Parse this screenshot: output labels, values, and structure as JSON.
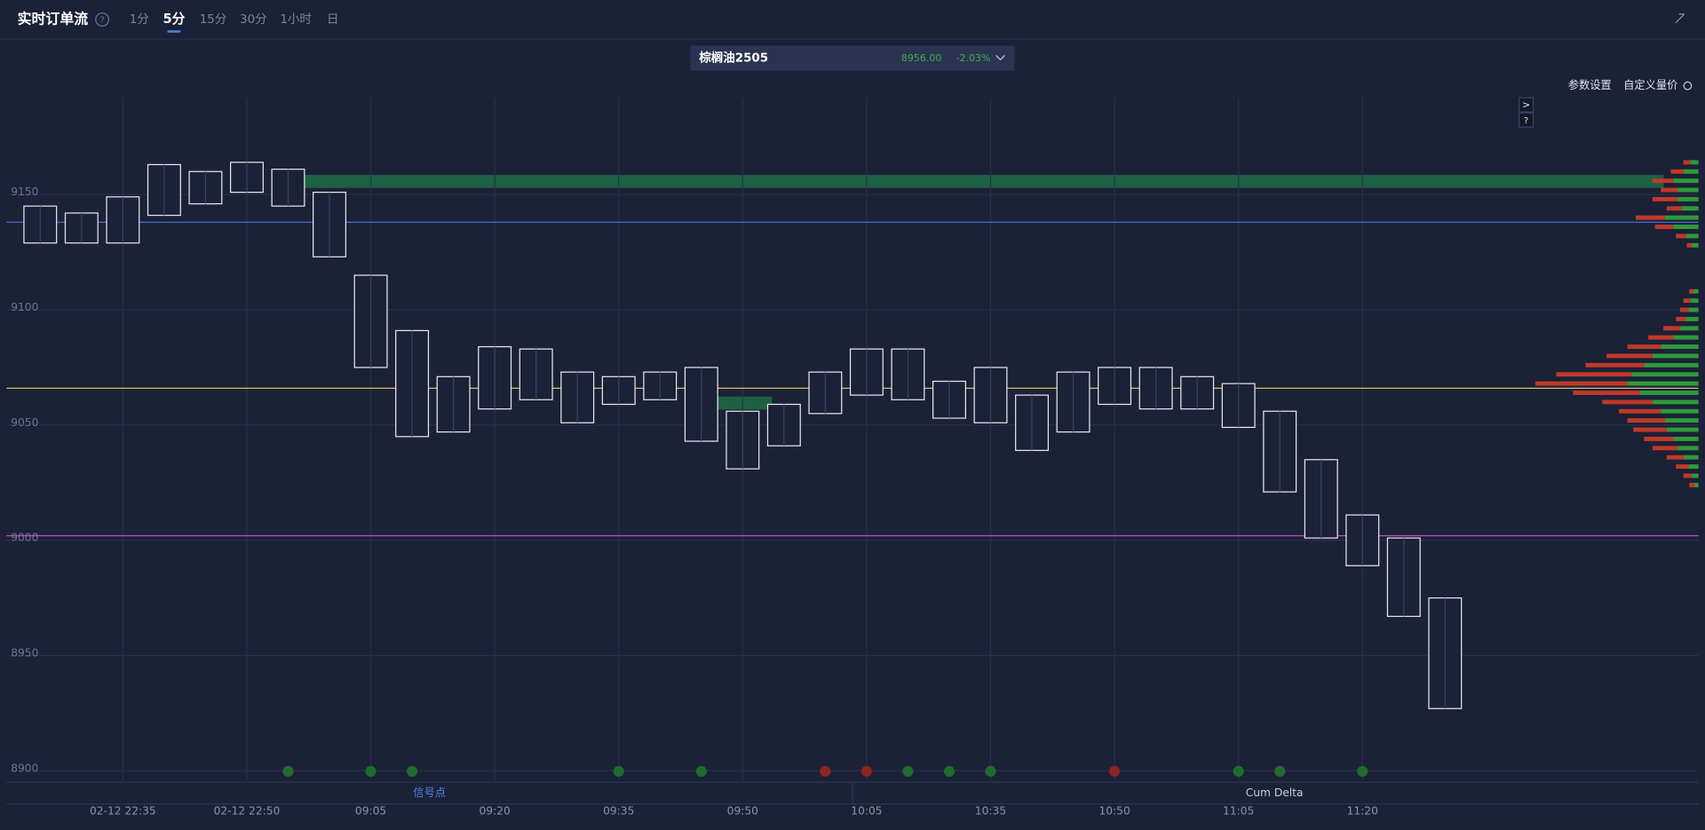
{
  "header": {
    "title": "实时订单流",
    "help": "?",
    "intervals": [
      "1分",
      "5分",
      "15分",
      "30分",
      "1小时",
      "日"
    ],
    "active": "5分"
  },
  "instrument": {
    "name": "棕榈油2505",
    "price": "8956.00",
    "change": "-2.03%"
  },
  "toolbar": {
    "settings": "参数设置",
    "custom": "自定义量价"
  },
  "side_buttons": [
    ">",
    "?"
  ],
  "bottom_tabs": [
    "信号点",
    "Cum Delta"
  ],
  "chart_data": {
    "type": "footprint",
    "categories": [
      null,
      null,
      "02-12 22:35",
      null,
      null,
      "02-12 22:50",
      null,
      null,
      "09:05",
      null,
      null,
      "09:20",
      null,
      null,
      "09:35",
      null,
      null,
      "09:50",
      null,
      null,
      "10:05",
      null,
      null,
      "10:35",
      null,
      null,
      "10:50",
      null,
      null,
      "11:05",
      null,
      null,
      "11:20",
      null,
      null
    ],
    "high": [
      9145,
      9142,
      9149,
      9163,
      9160,
      9164,
      9161,
      9151,
      9115,
      9091,
      9071,
      9084,
      9083,
      9073,
      9071,
      9073,
      9075,
      9056,
      9059,
      9073,
      9083,
      9083,
      9069,
      9075,
      9063,
      9073,
      9075,
      9075,
      9071,
      9068,
      9056,
      9035,
      9011,
      9001,
      8975
    ],
    "low": [
      9129,
      9129,
      9129,
      9141,
      9146,
      9151,
      9145,
      9123,
      9075,
      9045,
      9047,
      9057,
      9061,
      9051,
      9059,
      9061,
      9043,
      9031,
      9041,
      9055,
      9063,
      9061,
      9053,
      9051,
      9039,
      9047,
      9059,
      9057,
      9057,
      9049,
      9021,
      9001,
      8989,
      8967,
      8927
    ],
    "ylim": [
      8896,
      9192
    ],
    "yticks": [
      8900,
      8950,
      9000,
      9050,
      9100,
      9150
    ],
    "grid": true,
    "levels": [
      {
        "value": 9138,
        "color": "#4a6fd0"
      },
      {
        "value": 9066,
        "color": "#e8d27a"
      },
      {
        "value": 9002,
        "color": "#c050c0"
      }
    ],
    "profile": {
      "prices": [
        9164,
        9160,
        9156,
        9152,
        9148,
        9144,
        9140,
        9136,
        9132,
        9128,
        9108,
        9104,
        9100,
        9096,
        9092,
        9088,
        9084,
        9080,
        9076,
        9072,
        9068,
        9064,
        9060,
        9056,
        9052,
        9048,
        9044,
        9040,
        9036,
        9032,
        9028,
        9024
      ],
      "series": [
        {
          "color": "#2e9a3a",
          "values": [
            10,
            18,
            30,
            25,
            25,
            20,
            40,
            30,
            15,
            8,
            6,
            10,
            12,
            15,
            22,
            30,
            45,
            55,
            65,
            80,
            85,
            70,
            55,
            45,
            40,
            38,
            30,
            25,
            18,
            12,
            8,
            5
          ]
        },
        {
          "color": "#c0392b",
          "values": [
            8,
            15,
            25,
            20,
            30,
            18,
            35,
            22,
            12,
            6,
            5,
            8,
            10,
            12,
            20,
            30,
            40,
            55,
            70,
            90,
            110,
            80,
            60,
            50,
            45,
            40,
            35,
            30,
            20,
            15,
            10,
            6
          ]
        }
      ]
    }
  }
}
